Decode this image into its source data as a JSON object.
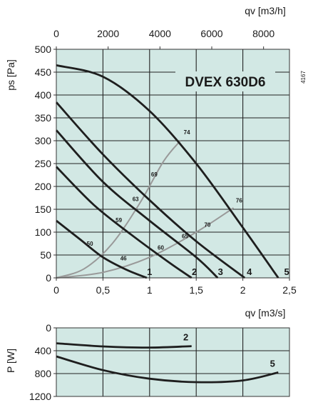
{
  "chart_data": [
    {
      "type": "line",
      "title": "DVEX 630D6",
      "side_code": "4167",
      "xlabel": "qv [m3/s]",
      "x2label": "qv [m3/h]",
      "ylabel": "ps [Pa]",
      "xlim": [
        0,
        2.5
      ],
      "ylim": [
        0,
        500
      ],
      "x_ticks": [
        "0",
        "0,5",
        "1",
        "1,5",
        "2",
        "2,5"
      ],
      "y_ticks": [
        "0",
        "50",
        "100",
        "150",
        "200",
        "250",
        "300",
        "350",
        "400",
        "450",
        "500"
      ],
      "x2_ticks": [
        "0",
        "2000",
        "4000",
        "6000",
        "8000"
      ],
      "grid": true,
      "series": [
        {
          "name": "1",
          "x": [
            0,
            0.25,
            0.5,
            0.75,
            0.97
          ],
          "y": [
            125,
            85,
            45,
            18,
            0
          ]
        },
        {
          "name": "2",
          "x": [
            0,
            0.4,
            0.8,
            1.2,
            1.45
          ],
          "y": [
            243,
            160,
            95,
            35,
            0
          ]
        },
        {
          "name": "3",
          "x": [
            0,
            0.5,
            1.0,
            1.5,
            1.73
          ],
          "y": [
            323,
            210,
            125,
            45,
            0
          ]
        },
        {
          "name": "4",
          "x": [
            0,
            0.5,
            1.0,
            1.5,
            2.02
          ],
          "y": [
            384,
            270,
            170,
            80,
            0
          ]
        },
        {
          "name": "5",
          "x": [
            0,
            0.5,
            1.0,
            1.5,
            2.0,
            2.38
          ],
          "y": [
            465,
            440,
            365,
            250,
            110,
            0
          ]
        }
      ],
      "efficiency_lines": [
        {
          "x": [
            0,
            0.3,
            0.6,
            0.9,
            1.15,
            1.33
          ],
          "y": [
            0,
            20,
            75,
            165,
            255,
            300
          ]
        },
        {
          "x": [
            0,
            0.5,
            1.0,
            1.5,
            1.9
          ],
          "y": [
            0,
            12,
            45,
            100,
            153
          ]
        }
      ],
      "annotations": [
        "50",
        "46",
        "59",
        "63",
        "69",
        "60",
        "74",
        "65",
        "70",
        "76"
      ],
      "curve_labels": [
        "1",
        "2",
        "3",
        "4",
        "5"
      ]
    },
    {
      "type": "line",
      "ylabel": "P [W]",
      "ylim": [
        1200,
        0
      ],
      "xlim": [
        0,
        2.5
      ],
      "y_ticks": [
        "0",
        "400",
        "800",
        "1200"
      ],
      "grid": true,
      "series": [
        {
          "name": "2",
          "x": [
            0,
            0.5,
            1.0,
            1.45
          ],
          "y": [
            270,
            325,
            345,
            320
          ]
        },
        {
          "name": "5",
          "x": [
            0,
            0.5,
            1.0,
            1.5,
            2.0,
            2.38
          ],
          "y": [
            500,
            740,
            890,
            950,
            920,
            780
          ]
        }
      ]
    }
  ]
}
